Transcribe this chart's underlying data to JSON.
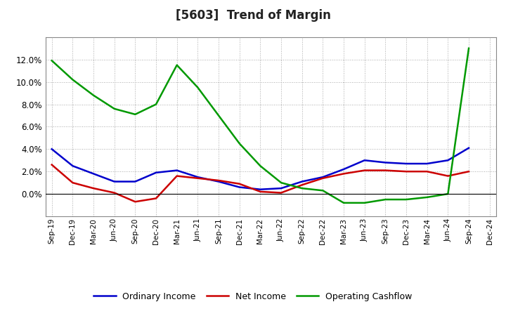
{
  "title": "[5603]  Trend of Margin",
  "x_labels": [
    "Sep-19",
    "Dec-19",
    "Mar-20",
    "Jun-20",
    "Sep-20",
    "Dec-20",
    "Mar-21",
    "Jun-21",
    "Sep-21",
    "Dec-21",
    "Mar-22",
    "Jun-22",
    "Sep-22",
    "Dec-22",
    "Mar-23",
    "Jun-23",
    "Sep-23",
    "Dec-23",
    "Mar-24",
    "Jun-24",
    "Sep-24",
    "Dec-24"
  ],
  "ordinary_income": [
    4.0,
    2.5,
    1.8,
    1.1,
    1.1,
    1.9,
    2.1,
    1.5,
    1.1,
    0.6,
    0.4,
    0.5,
    1.1,
    1.5,
    2.2,
    3.0,
    2.8,
    2.7,
    2.7,
    3.0,
    4.1,
    null
  ],
  "net_income": [
    2.6,
    1.0,
    0.5,
    0.1,
    -0.7,
    -0.4,
    1.6,
    1.4,
    1.2,
    0.9,
    0.2,
    0.1,
    0.8,
    1.4,
    1.8,
    2.1,
    2.1,
    2.0,
    2.0,
    1.6,
    2.0,
    null
  ],
  "operating_cashflow": [
    11.9,
    10.2,
    8.8,
    7.6,
    7.1,
    8.0,
    11.5,
    9.5,
    7.0,
    4.5,
    2.5,
    1.0,
    0.5,
    0.3,
    -0.8,
    -0.8,
    -0.5,
    -0.5,
    -0.3,
    0.0,
    13.0,
    null
  ],
  "ylim": [
    -2.0,
    14.0
  ],
  "yticks": [
    0.0,
    2.0,
    4.0,
    6.0,
    8.0,
    10.0,
    12.0
  ],
  "line_colors": {
    "ordinary_income": "#0000cc",
    "net_income": "#cc0000",
    "operating_cashflow": "#009900"
  },
  "legend_labels": [
    "Ordinary Income",
    "Net Income",
    "Operating Cashflow"
  ],
  "background_color": "#ffffff",
  "grid_color": "#aaaaaa"
}
